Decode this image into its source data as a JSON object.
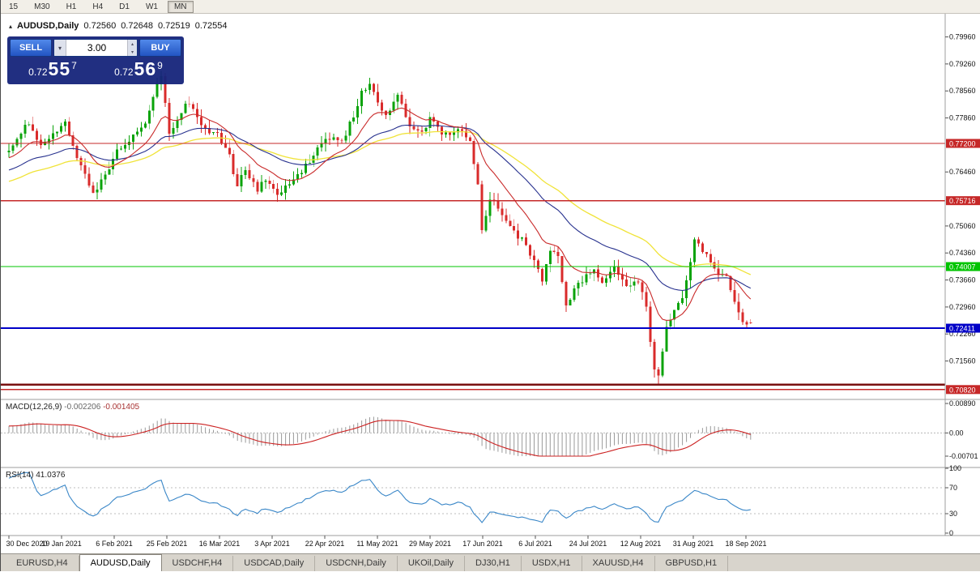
{
  "toolbar": {
    "timeframes": [
      {
        "label": "15",
        "active": false
      },
      {
        "label": "M30",
        "active": false
      },
      {
        "label": "H1",
        "active": false
      },
      {
        "label": "H4",
        "active": false
      },
      {
        "label": "D1",
        "active": false
      },
      {
        "label": "W1",
        "active": false
      },
      {
        "label": "MN",
        "active": true
      }
    ]
  },
  "chart_header": {
    "collapse_icon": "▴",
    "symbol": "AUDUSD,Daily",
    "open": "0.72560",
    "high": "0.72648",
    "low": "0.72519",
    "close": "0.72554"
  },
  "trade_panel": {
    "sell_label": "SELL",
    "buy_label": "BUY",
    "volume": "3.00",
    "dropdown_icon": "▾",
    "spin_up_icon": "▴",
    "spin_down_icon": "▾",
    "bid": {
      "base": "0.72",
      "big": "55",
      "pip": "7"
    },
    "ask": {
      "base": "0.72",
      "big": "56",
      "pip": "9"
    }
  },
  "tabs": {
    "active_index": 1,
    "items": [
      "EURUSD,H4",
      "AUDUSD,Daily",
      "USDCHF,H4",
      "USDCAD,Daily",
      "USDCNH,Daily",
      "UKOil,Daily",
      "DJ30,H1",
      "USDX,H1",
      "XAUUSD,H4",
      "GBPUSD,H1"
    ]
  },
  "chart_data": {
    "type": "candlestick",
    "symbol": "AUDUSD",
    "timeframe": "Daily",
    "bars": 186,
    "seed": 20210924,
    "noise": 0.0015,
    "wick": 0.0022,
    "leadin": {
      "bars": 100,
      "slope": 0.0003
    },
    "up_color": "#0aa30a",
    "down_color": "#d92b2b",
    "last_ohlc": [
      0.7256,
      0.72648,
      0.72519,
      0.72554
    ],
    "close_anchors": [
      [
        0,
        0.77
      ],
      [
        2,
        0.7735
      ],
      [
        5,
        0.7775
      ],
      [
        8,
        0.7715
      ],
      [
        11,
        0.7745
      ],
      [
        14,
        0.777
      ],
      [
        17,
        0.7685
      ],
      [
        21,
        0.759
      ],
      [
        24,
        0.764
      ],
      [
        27,
        0.77
      ],
      [
        31,
        0.774
      ],
      [
        34,
        0.777
      ],
      [
        37,
        0.7875
      ],
      [
        38,
        0.7895
      ],
      [
        40,
        0.774
      ],
      [
        42,
        0.778
      ],
      [
        44,
        0.783
      ],
      [
        46,
        0.781
      ],
      [
        49,
        0.7755
      ],
      [
        52,
        0.774
      ],
      [
        55,
        0.7685
      ],
      [
        57,
        0.761
      ],
      [
        59,
        0.7655
      ],
      [
        62,
        0.76
      ],
      [
        64,
        0.763
      ],
      [
        67,
        0.7585
      ],
      [
        70,
        0.762
      ],
      [
        73,
        0.7645
      ],
      [
        77,
        0.7705
      ],
      [
        80,
        0.7735
      ],
      [
        83,
        0.772
      ],
      [
        86,
        0.7795
      ],
      [
        88,
        0.785
      ],
      [
        90,
        0.7875
      ],
      [
        92,
        0.782
      ],
      [
        94,
        0.779
      ],
      [
        97,
        0.784
      ],
      [
        100,
        0.777
      ],
      [
        103,
        0.7745
      ],
      [
        105,
        0.7785
      ],
      [
        108,
        0.775
      ],
      [
        111,
        0.7745
      ],
      [
        113,
        0.7755
      ],
      [
        115,
        0.773
      ],
      [
        117,
        0.761
      ],
      [
        118,
        0.7495
      ],
      [
        120,
        0.758
      ],
      [
        122,
        0.7555
      ],
      [
        125,
        0.75
      ],
      [
        128,
        0.747
      ],
      [
        130,
        0.7435
      ],
      [
        132,
        0.739
      ],
      [
        133,
        0.7355
      ],
      [
        135,
        0.7445
      ],
      [
        137,
        0.7425
      ],
      [
        139,
        0.73
      ],
      [
        141,
        0.734
      ],
      [
        143,
        0.7365
      ],
      [
        146,
        0.7395
      ],
      [
        148,
        0.7355
      ],
      [
        151,
        0.74
      ],
      [
        153,
        0.736
      ],
      [
        155,
        0.7345
      ],
      [
        157,
        0.7365
      ],
      [
        159,
        0.729
      ],
      [
        161,
        0.7135
      ],
      [
        162,
        0.712
      ],
      [
        164,
        0.725
      ],
      [
        166,
        0.729
      ],
      [
        168,
        0.732
      ],
      [
        170,
        0.741
      ],
      [
        171,
        0.7465
      ],
      [
        173,
        0.7445
      ],
      [
        175,
        0.741
      ],
      [
        177,
        0.738
      ],
      [
        179,
        0.737
      ],
      [
        181,
        0.7315
      ],
      [
        183,
        0.725
      ],
      [
        185,
        0.7255
      ]
    ],
    "moving_averages": [
      {
        "period": 55,
        "color": "#f0e338",
        "width": 1.3
      },
      {
        "period": 34,
        "color": "#27318e",
        "width": 1.1
      },
      {
        "period": 13,
        "color": "#c92a2a",
        "width": 1.1
      }
    ],
    "hlines": [
      {
        "price": 0.772,
        "color": "#c62828",
        "width": 1.2,
        "label": "0.77200"
      },
      {
        "price": 0.75716,
        "color": "#c62828",
        "width": 1.2,
        "label": "0.75716"
      },
      {
        "price": 0.74007,
        "color": "#00c400",
        "width": 1.4,
        "label": "0.74007"
      },
      {
        "price": 0.72411,
        "color": "#0000c8",
        "width": 1.6,
        "label": "0.72411"
      },
      {
        "price": 0.7095,
        "color": "#7a1010",
        "width": 2.4
      },
      {
        "price": 0.7082,
        "color": "#c62828",
        "width": 1.2,
        "label": "0.70820"
      }
    ],
    "price_ticks": [
      {
        "p": 0.7996,
        "t": "0.79960"
      },
      {
        "p": 0.7926,
        "t": "0.79260"
      },
      {
        "p": 0.7856,
        "t": "0.78560"
      },
      {
        "p": 0.7786,
        "t": "0.77860"
      },
      {
        "p": 0.7646,
        "t": "0.76460"
      },
      {
        "p": 0.7506,
        "t": "0.75060"
      },
      {
        "p": 0.7436,
        "t": "0.74360"
      },
      {
        "p": 0.7366,
        "t": "0.73660"
      },
      {
        "p": 0.7296,
        "t": "0.72960"
      },
      {
        "p": 0.7226,
        "t": "0.72260"
      },
      {
        "p": 0.7156,
        "t": "0.71560"
      }
    ],
    "date_ticks": [
      "30 Dec 2020",
      "19 Jan 2021",
      "6 Feb 2021",
      "25 Feb 2021",
      "16 Mar 2021",
      "3 Apr 2021",
      "22 Apr 2021",
      "11 May 2021",
      "29 May 2021",
      "17 Jun 2021",
      "6 Jul 2021",
      "24 Jul 2021",
      "12 Aug 2021",
      "31 Aug 2021",
      "18 Sep 2021"
    ],
    "macd": {
      "label": "MACD(12,26,9)",
      "value_main": "-0.002206",
      "value_signal": "-0.001405",
      "fast": 12,
      "slow": 26,
      "signal": 9,
      "hist_color": "#9a9a9a",
      "signal_color": "#cc2222",
      "axis": [
        {
          "v": 0.0089,
          "t": "0.00890"
        },
        {
          "v": 0,
          "t": "0.00"
        },
        {
          "v": -0.00701,
          "t": "-0.00701"
        }
      ]
    },
    "rsi": {
      "label": "RSI(14)",
      "value": "41.0376",
      "period": 14,
      "color": "#3a87c8",
      "levels": [
        70,
        30
      ],
      "axis": [
        {
          "v": 100,
          "t": "100"
        },
        {
          "v": 70,
          "t": "70"
        },
        {
          "v": 30,
          "t": "30"
        },
        {
          "v": 0,
          "t": "0"
        }
      ]
    }
  }
}
